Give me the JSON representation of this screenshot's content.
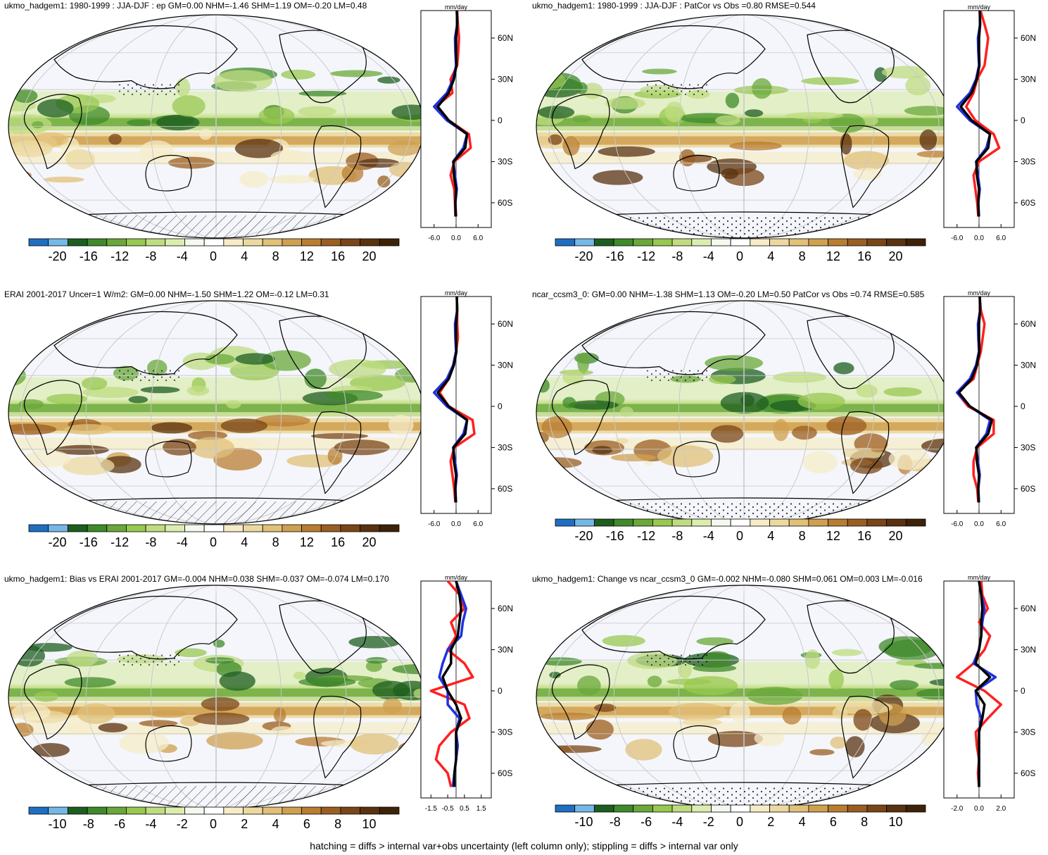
{
  "colors": {
    "scale": [
      "#1f6fc0",
      "#74b8e8",
      "#1d5e20",
      "#3f8a2a",
      "#6aa83a",
      "#98c850",
      "#bfdc80",
      "#dcedb0",
      "#f5f8ee",
      "#ffffff",
      "#f5ecc8",
      "#ecd9a0",
      "#e1c078",
      "#cfa050",
      "#b97d32",
      "#9b5e22",
      "#7a4618",
      "#5a3210",
      "#3e2208"
    ],
    "ocean": "#f4f6fb",
    "obs_line": "#ff2020",
    "model_line": "#2030e0",
    "ref_line": "#000000"
  },
  "profile_lat_labels": [
    "60N",
    "30N",
    "0",
    "30S",
    "60S"
  ],
  "profile_unit": "mm/day",
  "footnote": "hatching = diffs > internal var+obs uncertainty (left column only); stippling = diffs > internal var only",
  "panels": [
    {
      "title": "ukmo_hadgem1: 1980-1999 : JJA-DJF : ep GM=0.00 NHM=-1.46 SHM=1.19 OM=-0.20 LM=0.48",
      "colorbar_labels": [
        "-20",
        "-16",
        "-12",
        "-8",
        "-4",
        "0",
        "4",
        "8",
        "12",
        "16",
        "20"
      ],
      "x_ticks": [
        "-6.0",
        "0.0",
        "6.0"
      ],
      "stipple": "hatch"
    },
    {
      "title": "ukmo_hadgem1: 1980-1999 : JJA-DJF : PatCor vs Obs =0.80 RMSE=0.544",
      "colorbar_labels": [
        "-20",
        "-16",
        "-12",
        "-8",
        "-4",
        "0",
        "4",
        "8",
        "12",
        "16",
        "20"
      ],
      "x_ticks": [
        "-6.0",
        "0.0",
        "6.0"
      ],
      "stipple": "dots"
    },
    {
      "title": "ERAI 2001-2017 Uncer=1 W/m2: GM=0.00 NHM=-1.50 SHM=1.22 OM=-0.12 LM=0.31",
      "colorbar_labels": [
        "-20",
        "-16",
        "-12",
        "-8",
        "-4",
        "0",
        "4",
        "8",
        "12",
        "16",
        "20"
      ],
      "x_ticks": [
        "-6.0",
        "0.0",
        "6.0"
      ],
      "stipple": "hatch"
    },
    {
      "title": "ncar_ccsm3_0: GM=0.00 NHM=-1.38 SHM=1.13 OM=-0.20 LM=0.50 PatCor vs Obs =0.74 RMSE=0.585",
      "colorbar_labels": [
        "-20",
        "-16",
        "-12",
        "-8",
        "-4",
        "0",
        "4",
        "8",
        "12",
        "16",
        "20"
      ],
      "x_ticks": [
        "-6.0",
        "0.0",
        "6.0"
      ],
      "stipple": "dots"
    },
    {
      "title": "ukmo_hadgem1: Bias vs ERAI 2001-2017 GM=-0.004 NHM=0.038 SHM=-0.037 OM=-0.074 LM=0.170",
      "colorbar_labels": [
        "-10",
        "-8",
        "-6",
        "-4",
        "-2",
        "0",
        "2",
        "4",
        "6",
        "8",
        "10"
      ],
      "x_ticks": [
        "-1.5",
        "-0.5",
        "0.5",
        "1.5"
      ],
      "stipple": "hatch"
    },
    {
      "title": "ukmo_hadgem1: Change vs ncar_ccsm3_0 GM=-0.002 NHM=-0.080 SHM=0.061 OM=0.003 LM=-0.016",
      "colorbar_labels": [
        "-10",
        "-8",
        "-6",
        "-4",
        "-2",
        "0",
        "2",
        "4",
        "6",
        "8",
        "10"
      ],
      "x_ticks": [
        "-2.0",
        "0.0",
        "2.0"
      ],
      "stipple": "dots"
    }
  ],
  "chart_data": {
    "type": "heatmap",
    "description_type": "global maps of JJA-DJF precipitation difference with zonal-mean profiles",
    "colorbar_levels_full": [
      -20,
      -16,
      -12,
      -8,
      -4,
      0,
      4,
      8,
      12,
      16,
      20
    ],
    "colorbar_levels_diff": [
      -10,
      -8,
      -6,
      -4,
      -2,
      0,
      2,
      4,
      6,
      8,
      10
    ],
    "profile_latitudes": [
      80,
      70,
      60,
      50,
      40,
      30,
      20,
      10,
      0,
      -10,
      -20,
      -30,
      -40,
      -50,
      -60,
      -70
    ],
    "profiles": [
      {
        "series": [
          {
            "color": "red",
            "values": [
              0.3,
              0.5,
              0.8,
              0.6,
              0.3,
              -1.5,
              -1.0,
              -5.5,
              -2.0,
              3.5,
              4.0,
              -0.5,
              -1.5,
              -0.5,
              -0.3,
              -0.2
            ]
          },
          {
            "color": "blue",
            "values": [
              0.2,
              0.3,
              -0.3,
              -0.2,
              0.0,
              -0.8,
              -2.5,
              -6.0,
              -2.5,
              3.0,
              2.0,
              -0.8,
              -0.3,
              0.2,
              -0.2,
              0.0
            ]
          },
          {
            "color": "black",
            "values": [
              0.2,
              0.3,
              0.0,
              0.0,
              0.1,
              -0.6,
              -2.0,
              -5.0,
              -2.0,
              3.0,
              2.5,
              -0.7,
              -0.6,
              0.0,
              -0.2,
              -0.1
            ]
          }
        ]
      },
      {
        "series": [
          {
            "color": "red",
            "values": [
              0.4,
              1.5,
              2.5,
              2.0,
              1.5,
              -0.5,
              -1.5,
              -3.5,
              -1.0,
              4.0,
              5.5,
              0.0,
              -1.5,
              -1.0,
              -0.5,
              -0.2
            ]
          },
          {
            "color": "blue",
            "values": [
              0.2,
              0.3,
              -0.3,
              -0.2,
              0.0,
              -0.8,
              -2.5,
              -6.0,
              -2.5,
              3.0,
              2.0,
              -0.8,
              -0.3,
              0.2,
              -0.2,
              0.0
            ]
          },
          {
            "color": "black",
            "values": [
              0.2,
              0.3,
              0.0,
              0.0,
              0.1,
              -0.6,
              -2.0,
              -5.0,
              -2.0,
              3.0,
              2.5,
              -0.7,
              -0.6,
              0.0,
              -0.2,
              -0.1
            ]
          }
        ]
      },
      {
        "series": [
          {
            "color": "red",
            "values": [
              0.2,
              0.3,
              0.3,
              0.5,
              0.0,
              -0.8,
              -2.0,
              -4.5,
              -2.0,
              4.5,
              5.0,
              -0.5,
              -1.5,
              -1.0,
              -0.5,
              -0.2
            ]
          },
          {
            "color": "blue",
            "values": [
              0.2,
              0.3,
              -0.3,
              -0.2,
              0.0,
              -0.8,
              -2.5,
              -6.0,
              -2.5,
              3.0,
              2.0,
              -0.8,
              -0.3,
              0.2,
              -0.2,
              0.0
            ]
          },
          {
            "color": "black",
            "values": [
              0.2,
              0.3,
              0.0,
              0.0,
              0.1,
              -0.6,
              -2.0,
              -5.0,
              -2.0,
              3.0,
              2.5,
              -0.7,
              -0.6,
              0.0,
              -0.2,
              -0.1
            ]
          }
        ]
      },
      {
        "series": [
          {
            "color": "red",
            "values": [
              0.2,
              0.5,
              1.5,
              1.0,
              0.5,
              -0.5,
              -1.5,
              -6.0,
              -3.0,
              4.0,
              4.0,
              -0.5,
              -1.5,
              -1.5,
              -0.5,
              -0.2
            ]
          },
          {
            "color": "blue",
            "values": [
              0.2,
              0.3,
              -0.3,
              -0.2,
              0.0,
              -0.8,
              -2.5,
              -6.0,
              -2.5,
              3.0,
              2.0,
              -0.8,
              -0.3,
              0.2,
              -0.2,
              0.0
            ]
          },
          {
            "color": "black",
            "values": [
              0.2,
              0.3,
              0.0,
              0.0,
              0.1,
              -0.6,
              -2.0,
              -5.5,
              -2.5,
              3.5,
              2.5,
              -0.7,
              -0.6,
              0.0,
              -0.2,
              -0.1
            ]
          }
        ]
      },
      {
        "series": [
          {
            "color": "red",
            "values": [
              -0.5,
              0.2,
              0.5,
              -0.3,
              0.0,
              -0.5,
              0.5,
              1.0,
              -1.5,
              0.5,
              0.8,
              -0.3,
              -1.0,
              -1.2,
              -0.5,
              -0.3
            ]
          },
          {
            "color": "blue",
            "values": [
              0.0,
              0.3,
              0.6,
              0.4,
              0.3,
              -0.5,
              -0.8,
              -1.0,
              -0.5,
              -0.5,
              0.2,
              0.0,
              0.1,
              0.0,
              -0.1,
              -0.2
            ]
          },
          {
            "color": "black",
            "values": [
              0.0,
              0.2,
              0.3,
              0.2,
              0.1,
              -0.3,
              -0.3,
              -0.8,
              -0.5,
              0.0,
              0.3,
              0.0,
              0.0,
              0.0,
              -0.1,
              -0.1
            ]
          }
        ]
      },
      {
        "series": [
          {
            "color": "red",
            "values": [
              0.2,
              0.3,
              0.8,
              0.0,
              1.0,
              0.5,
              -0.5,
              -2.0,
              0.5,
              2.0,
              0.8,
              -0.3,
              -0.2,
              0.0,
              -0.1,
              0.0
            ]
          },
          {
            "color": "blue",
            "values": [
              0.0,
              0.2,
              0.5,
              0.3,
              0.2,
              0.0,
              -0.5,
              1.5,
              -0.3,
              -0.2,
              0.2,
              0.0,
              0.0,
              0.0,
              0.0,
              0.0
            ]
          },
          {
            "color": "black",
            "values": [
              0.0,
              0.2,
              0.3,
              0.2,
              0.2,
              0.0,
              -0.3,
              1.0,
              -0.3,
              0.5,
              0.3,
              0.0,
              0.0,
              0.0,
              0.0,
              0.0
            ]
          }
        ]
      }
    ]
  }
}
